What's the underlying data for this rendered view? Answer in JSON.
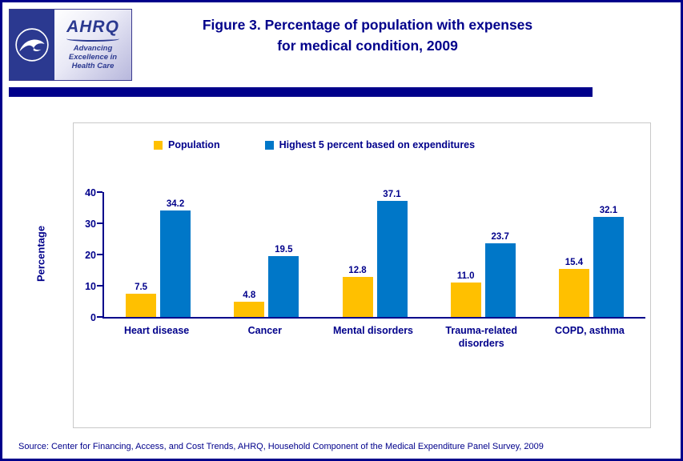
{
  "header": {
    "title_line1": "Figure 3. Percentage of population with expenses",
    "title_line2": "for medical condition, 2009",
    "logo": {
      "ahrq_text": "AHRQ",
      "tagline_line1": "Advancing",
      "tagline_line2": "Excellence in",
      "tagline_line3": "Health Care"
    }
  },
  "chart_data": {
    "type": "bar",
    "title": "Figure 3. Percentage of population with expenses for medical condition, 2009",
    "categories": [
      "Heart disease",
      "Cancer",
      "Mental disorders",
      "Trauma-related disorders",
      "COPD, asthma"
    ],
    "series": [
      {
        "name": "Population",
        "color": "#FFC000",
        "values": [
          7.5,
          4.8,
          12.8,
          11.0,
          15.4
        ]
      },
      {
        "name": "Highest 5 percent based on expenditures",
        "color": "#0077C8",
        "values": [
          34.2,
          19.5,
          37.1,
          23.7,
          32.1
        ]
      }
    ],
    "xlabel": "",
    "ylabel": "Percentage",
    "ylim": [
      0,
      40
    ],
    "yticks": [
      0,
      10,
      20,
      30,
      40
    ],
    "grid": false,
    "legend_position": "top"
  },
  "footer": {
    "source": "Source: Center for Financing, Access, and Cost Trends, AHRQ, Household Component of the Medical Expenditure Panel Survey, 2009"
  },
  "colors": {
    "accent": "#00008B",
    "bar_population": "#FFC000",
    "bar_top5": "#0077C8"
  }
}
